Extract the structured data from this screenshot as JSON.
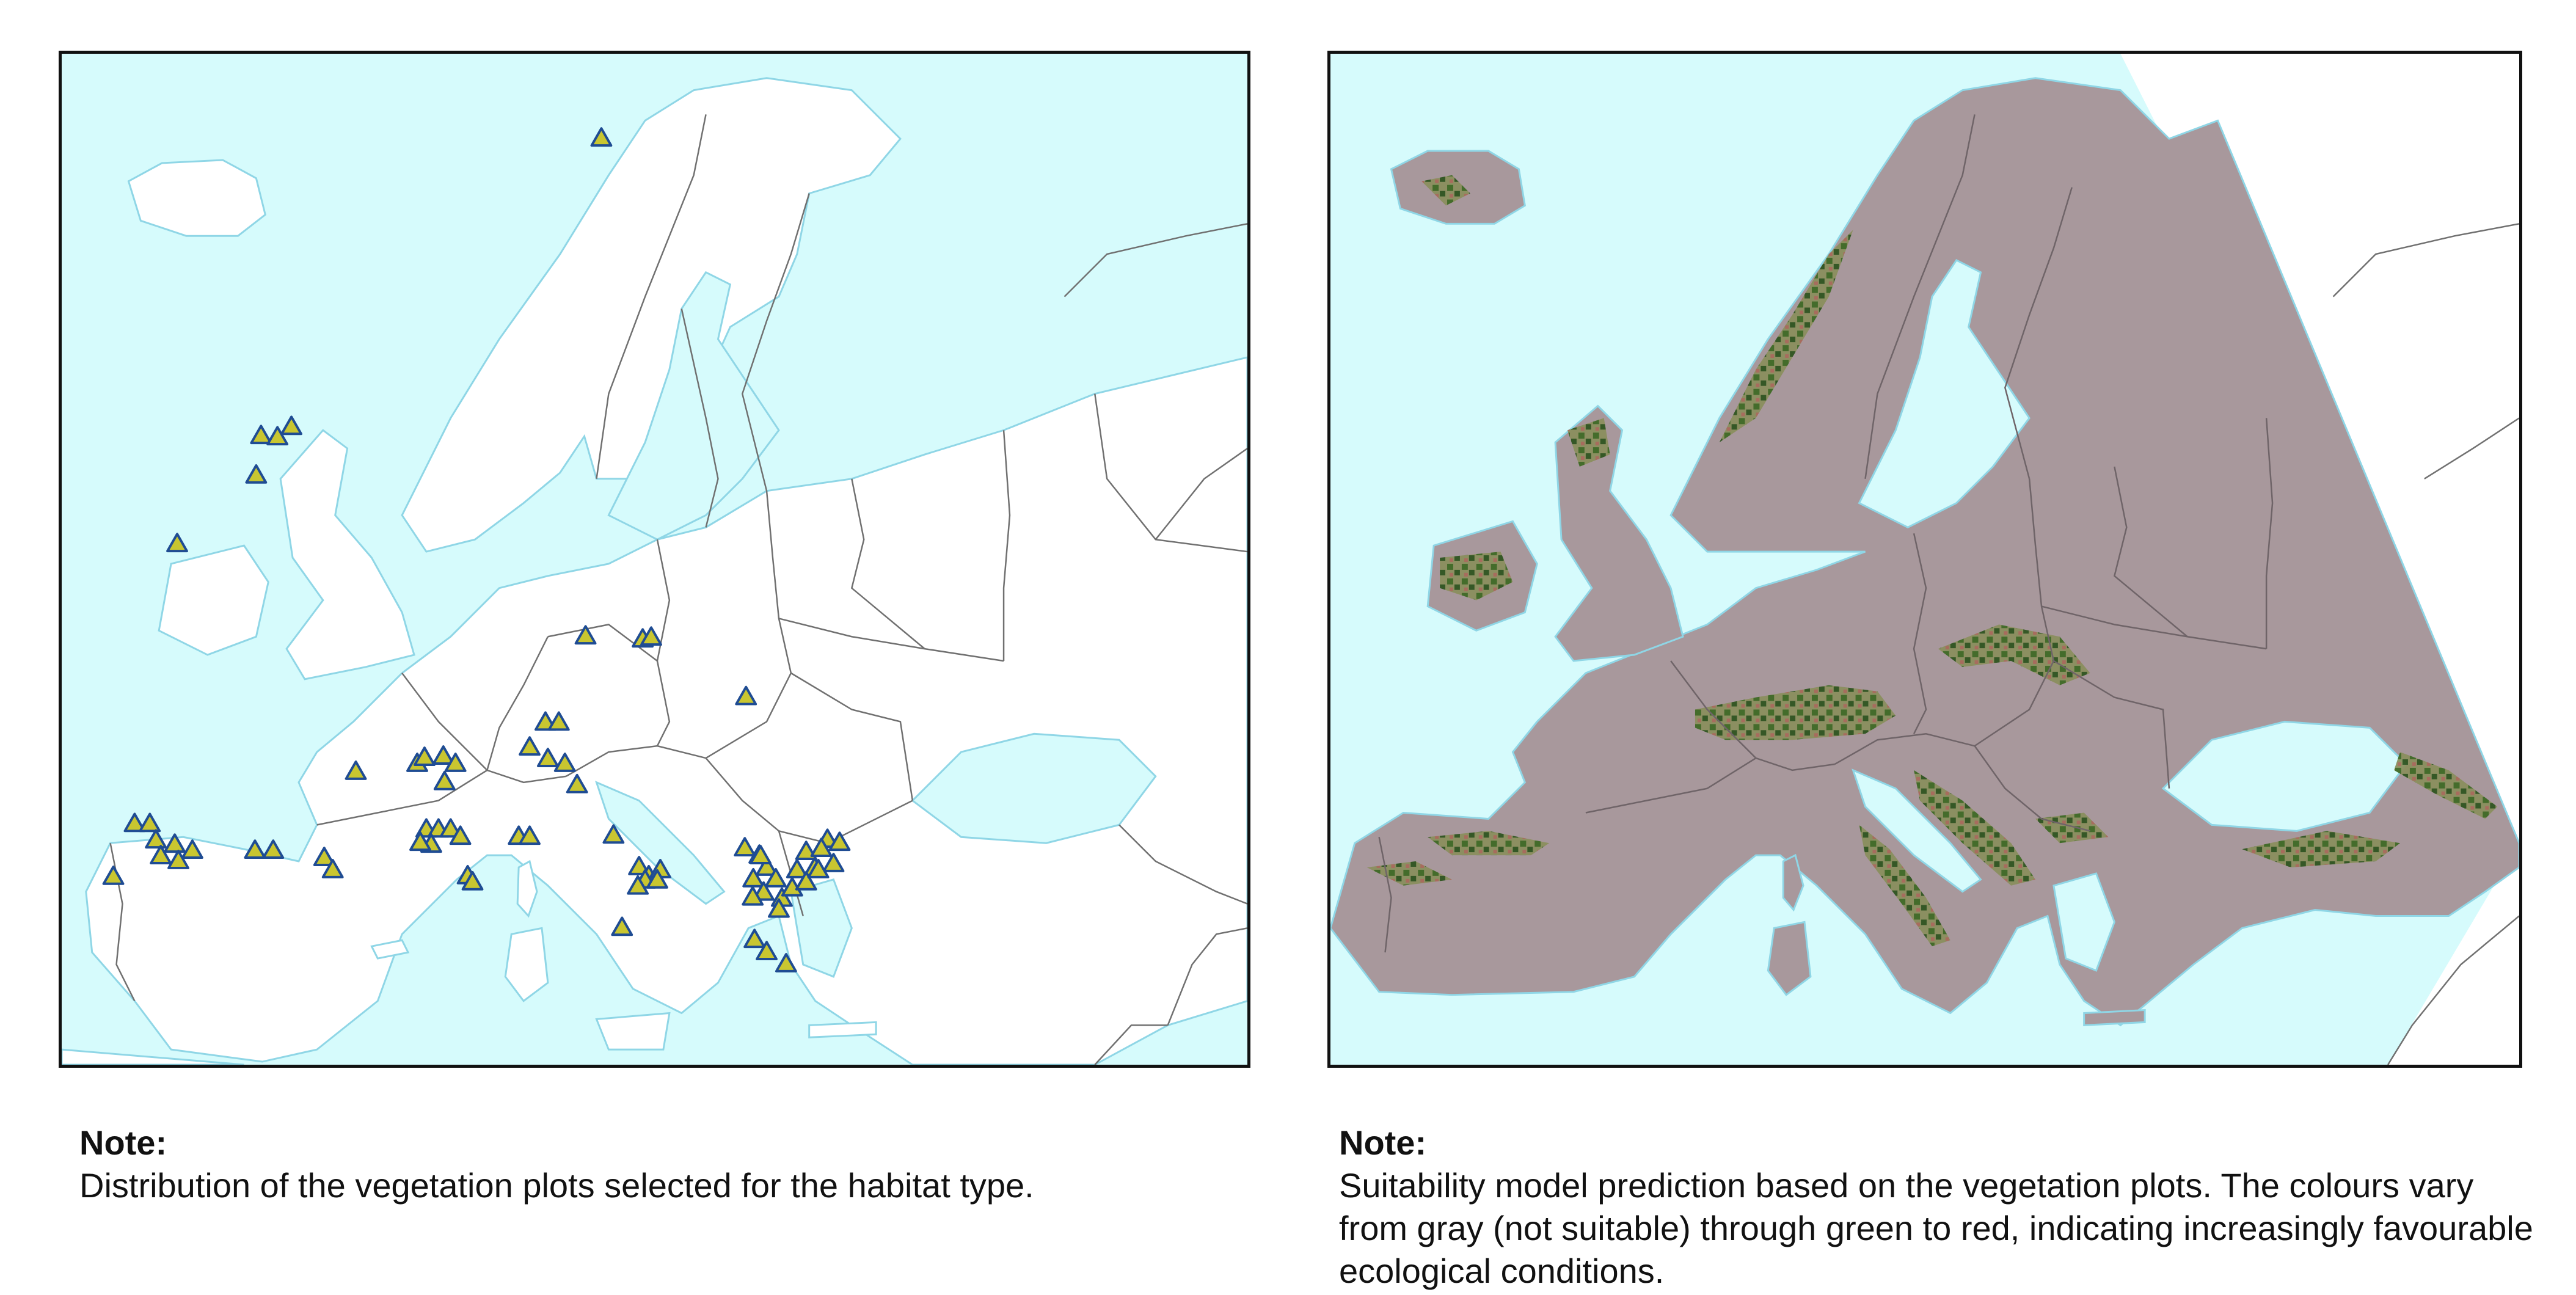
{
  "panels": [
    {
      "id": "distribution-map",
      "note_title": "Note:",
      "note_text": "Distribution of the vegetation plots selected for the habitat type."
    },
    {
      "id": "suitability-map",
      "note_title": "Note:",
      "note_text": "Suitability model prediction based on the vegetation plots. The colours vary from gray (not suitable) through green to red, indicating increasingly favourable ecological conditions."
    }
  ],
  "colors": {
    "sea": "#d6fbfc",
    "land": "#ffffff",
    "border": "#707070",
    "coast": "#9fdce8",
    "plot_marker_fill": "#c9c630",
    "plot_marker_stroke": "#1f4c93",
    "model_gray": "#a8989c",
    "model_green": "#3e6a25",
    "model_red": "#b0504a"
  },
  "map_symbols": {
    "plot_marker": "triangle-marker",
    "model_legend_order": [
      "gray (not suitable)",
      "green",
      "red"
    ]
  }
}
